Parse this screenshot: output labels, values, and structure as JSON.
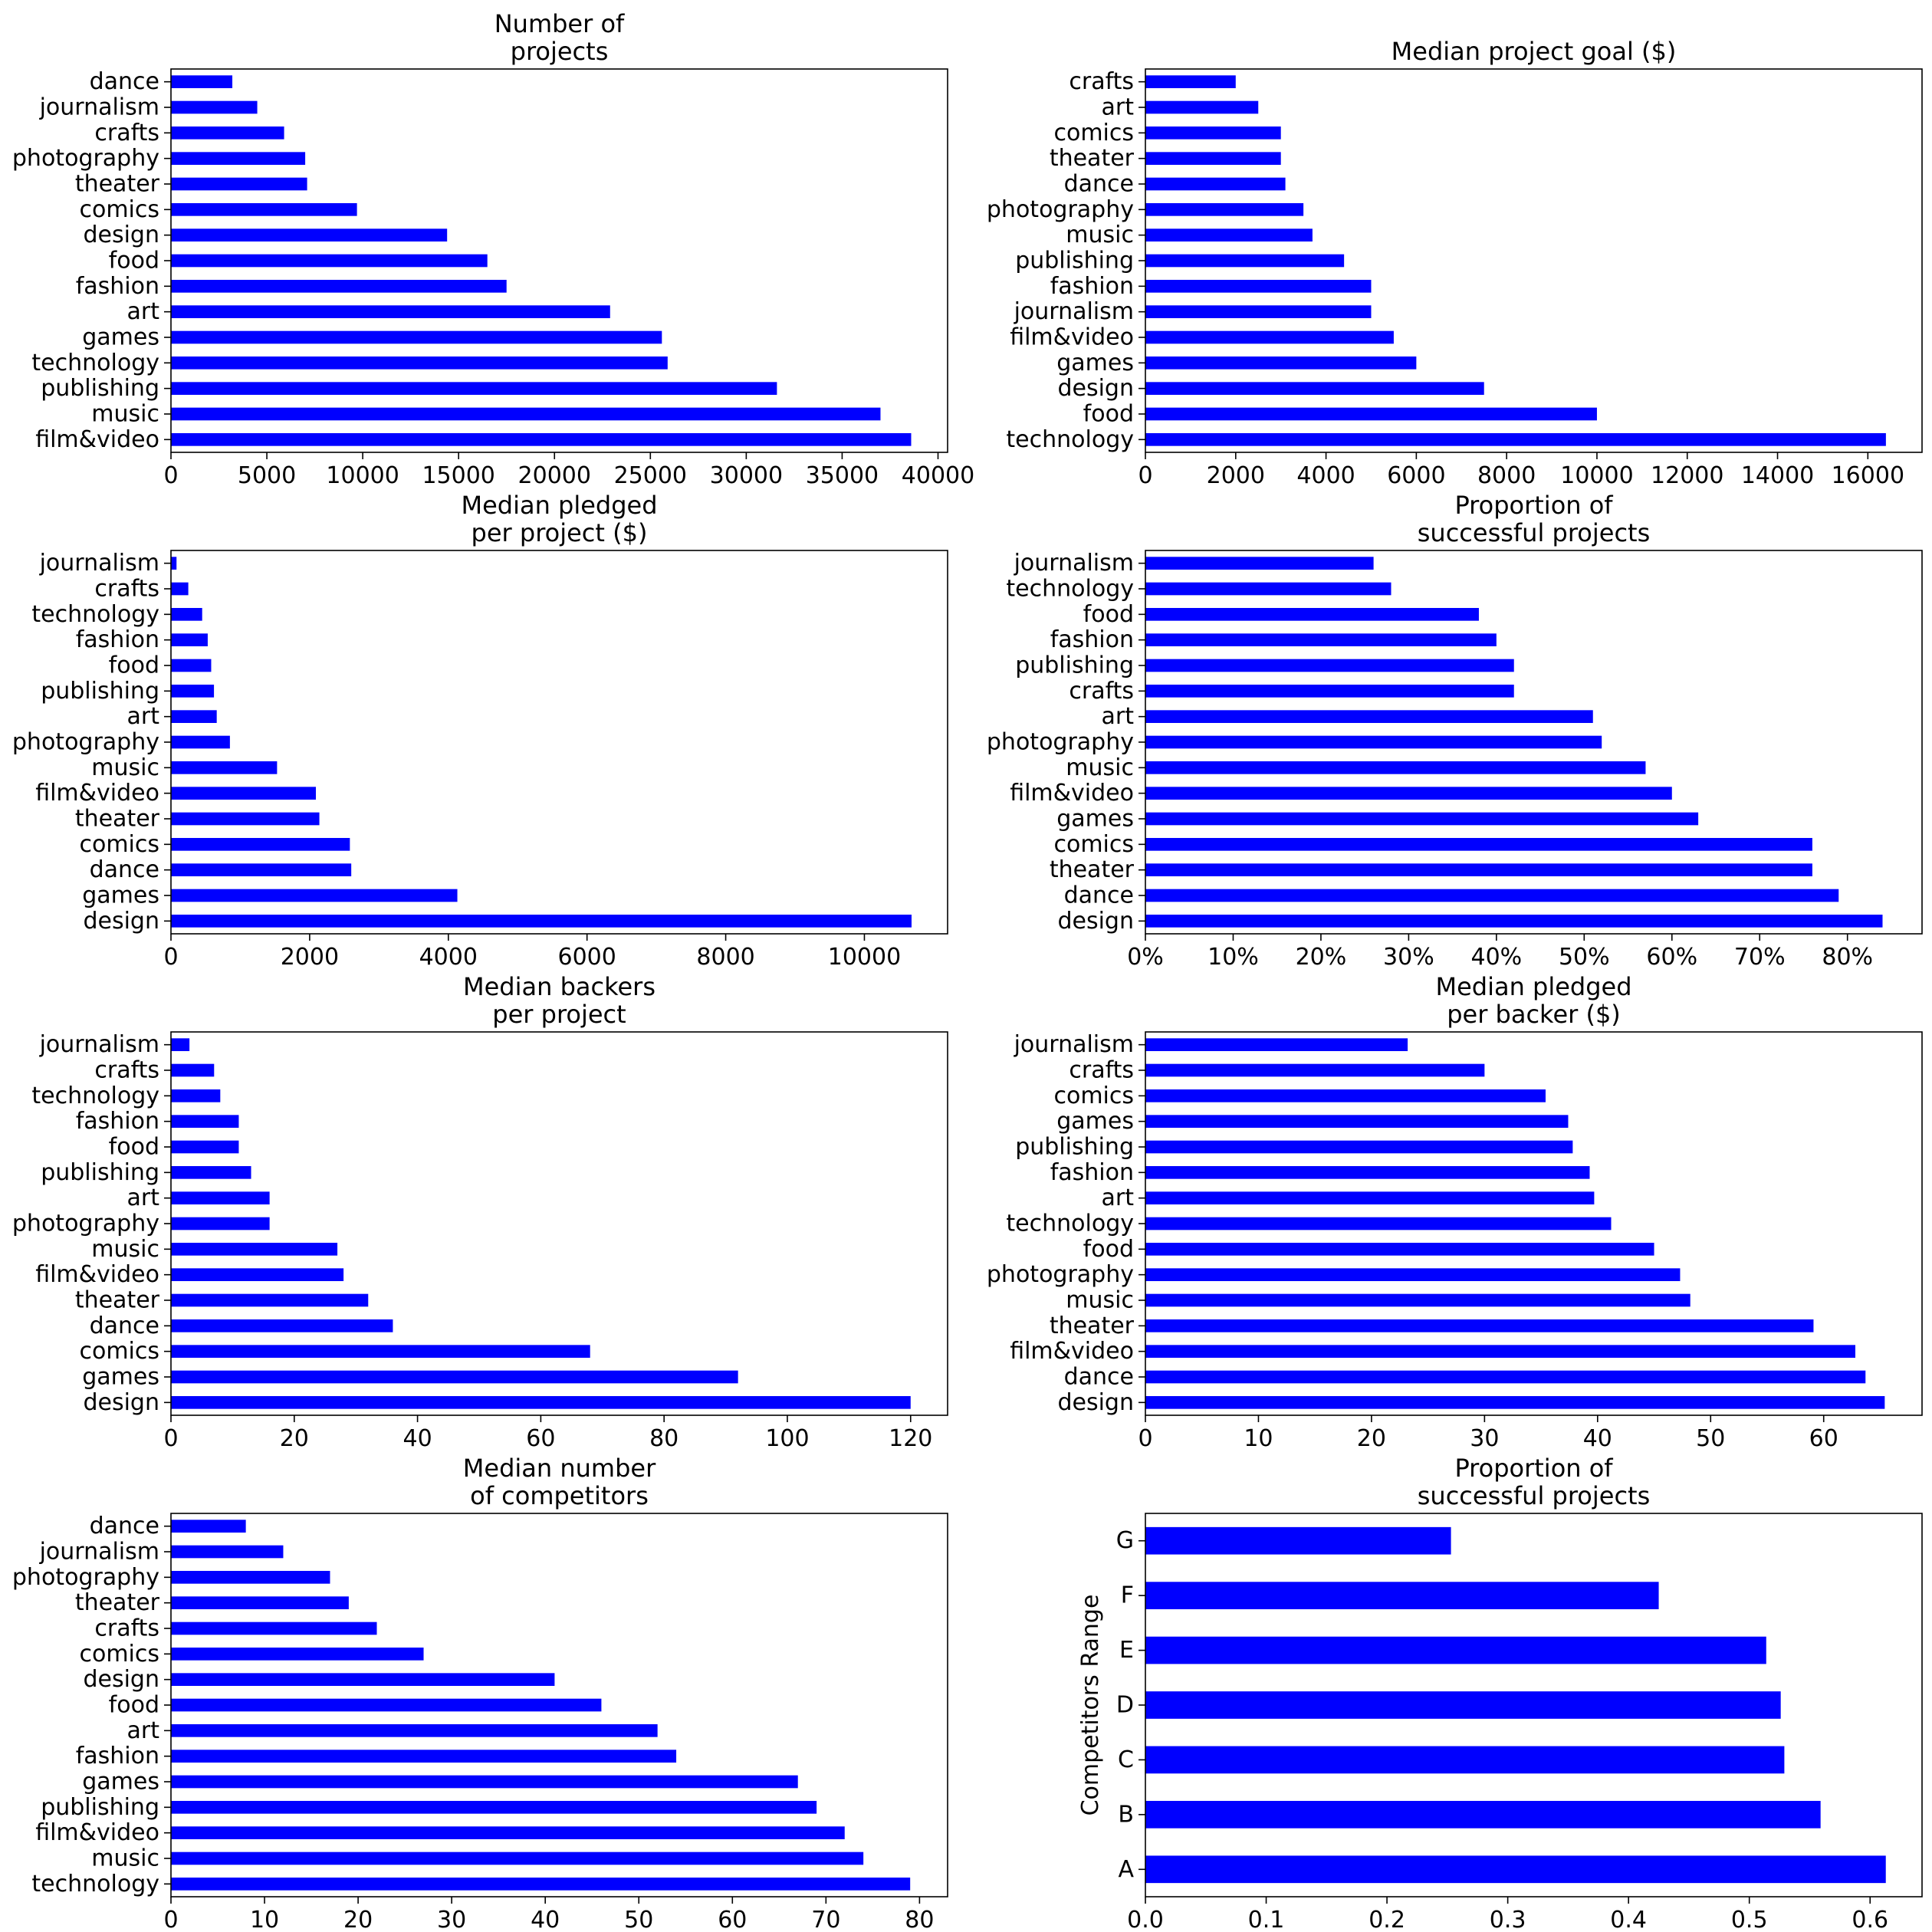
{
  "colors": {
    "bar": "#0000ff",
    "axis": "#000000",
    "background": "#ffffff"
  },
  "chart_data": [
    {
      "type": "bar",
      "orientation": "horizontal",
      "title": "Number of\nprojects",
      "xlabel": "",
      "ylabel": "",
      "categories": [
        "dance",
        "journalism",
        "crafts",
        "photography",
        "theater",
        "comics",
        "design",
        "food",
        "fashion",
        "art",
        "games",
        "technology",
        "publishing",
        "music",
        "film&video"
      ],
      "values": [
        3200,
        4500,
        5900,
        7000,
        7100,
        9700,
        14400,
        16500,
        17500,
        22900,
        25600,
        25900,
        31600,
        37000,
        38600
      ],
      "xlim": [
        0,
        40500
      ],
      "xticks": [
        0,
        5000,
        10000,
        15000,
        20000,
        25000,
        30000,
        35000,
        40000
      ],
      "xtick_labels": [
        "0",
        "5000",
        "10000",
        "15000",
        "20000",
        "25000",
        "30000",
        "35000",
        "40000"
      ],
      "grid": false
    },
    {
      "type": "bar",
      "orientation": "horizontal",
      "title": "Median project goal ($)",
      "xlabel": "",
      "ylabel": "",
      "categories": [
        "crafts",
        "art",
        "comics",
        "theater",
        "dance",
        "photography",
        "music",
        "publishing",
        "fashion",
        "journalism",
        "film&video",
        "games",
        "design",
        "food",
        "technology"
      ],
      "values": [
        2000,
        2500,
        3000,
        3000,
        3100,
        3500,
        3700,
        4400,
        5000,
        5000,
        5500,
        6000,
        7500,
        10000,
        16400
      ],
      "xlim": [
        0,
        17200
      ],
      "xticks": [
        0,
        2000,
        4000,
        6000,
        8000,
        10000,
        12000,
        14000,
        16000
      ],
      "xtick_labels": [
        "0",
        "2000",
        "4000",
        "6000",
        "8000",
        "10000",
        "12000",
        "14000",
        "16000"
      ],
      "grid": false
    },
    {
      "type": "bar",
      "orientation": "horizontal",
      "title": "Median pledged\nper project ($)",
      "xlabel": "",
      "ylabel": "",
      "categories": [
        "journalism",
        "crafts",
        "technology",
        "fashion",
        "food",
        "publishing",
        "art",
        "photography",
        "music",
        "film&video",
        "theater",
        "comics",
        "dance",
        "games",
        "design"
      ],
      "values": [
        80,
        250,
        450,
        530,
        580,
        620,
        660,
        850,
        1530,
        2090,
        2140,
        2580,
        2600,
        4130,
        10680
      ],
      "xlim": [
        0,
        11200
      ],
      "xticks": [
        0,
        2000,
        4000,
        6000,
        8000,
        10000
      ],
      "xtick_labels": [
        "0",
        "2000",
        "4000",
        "6000",
        "8000",
        "10000"
      ],
      "grid": false
    },
    {
      "type": "bar",
      "orientation": "horizontal",
      "title": "Proportion of\nsuccessful projects",
      "xlabel": "",
      "ylabel": "",
      "categories": [
        "journalism",
        "technology",
        "food",
        "fashion",
        "publishing",
        "crafts",
        "art",
        "photography",
        "music",
        "film&video",
        "games",
        "comics",
        "theater",
        "dance",
        "design"
      ],
      "values": [
        0.26,
        0.28,
        0.38,
        0.4,
        0.42,
        0.42,
        0.51,
        0.52,
        0.57,
        0.6,
        0.63,
        0.76,
        0.76,
        0.79,
        0.84
      ],
      "xlim": [
        0,
        0.885
      ],
      "xticks": [
        0,
        0.1,
        0.2,
        0.3,
        0.4,
        0.5,
        0.6,
        0.7,
        0.8
      ],
      "xtick_labels": [
        "0%",
        "10%",
        "20%",
        "30%",
        "40%",
        "50%",
        "60%",
        "70%",
        "80%"
      ],
      "grid": false
    },
    {
      "type": "bar",
      "orientation": "horizontal",
      "title": "Median backers\nper project",
      "xlabel": "",
      "ylabel": "",
      "categories": [
        "journalism",
        "crafts",
        "technology",
        "fashion",
        "food",
        "publishing",
        "art",
        "photography",
        "music",
        "film&video",
        "theater",
        "dance",
        "comics",
        "games",
        "design"
      ],
      "values": [
        3,
        7,
        8,
        11,
        11,
        13,
        16,
        16,
        27,
        28,
        32,
        36,
        68,
        92,
        120
      ],
      "xlim": [
        0,
        126
      ],
      "xticks": [
        0,
        20,
        40,
        60,
        80,
        100,
        120
      ],
      "xtick_labels": [
        "0",
        "20",
        "40",
        "60",
        "80",
        "100",
        "120"
      ],
      "grid": false
    },
    {
      "type": "bar",
      "orientation": "horizontal",
      "title": "Median pledged\nper backer ($)",
      "xlabel": "",
      "ylabel": "",
      "categories": [
        "journalism",
        "crafts",
        "comics",
        "games",
        "publishing",
        "fashion",
        "art",
        "technology",
        "food",
        "photography",
        "music",
        "theater",
        "film&video",
        "dance",
        "design"
      ],
      "values": [
        23.2,
        30.0,
        35.4,
        37.4,
        37.8,
        39.3,
        39.7,
        41.2,
        45.0,
        47.3,
        48.2,
        59.1,
        62.8,
        63.7,
        65.4
      ],
      "xlim": [
        0,
        68.7
      ],
      "xticks": [
        0,
        10,
        20,
        30,
        40,
        50,
        60
      ],
      "xtick_labels": [
        "0",
        "10",
        "20",
        "30",
        "40",
        "50",
        "60"
      ],
      "grid": false
    },
    {
      "type": "bar",
      "orientation": "horizontal",
      "title": "Median number\nof competitors",
      "xlabel": "",
      "ylabel": "",
      "categories": [
        "dance",
        "journalism",
        "photography",
        "theater",
        "crafts",
        "comics",
        "design",
        "food",
        "art",
        "fashion",
        "games",
        "publishing",
        "film&video",
        "music",
        "technology"
      ],
      "values": [
        8,
        12,
        17,
        19,
        22,
        27,
        41,
        46,
        52,
        54,
        67,
        69,
        72,
        74,
        79
      ],
      "xlim": [
        0,
        83
      ],
      "xticks": [
        0,
        10,
        20,
        30,
        40,
        50,
        60,
        70,
        80
      ],
      "xtick_labels": [
        "0",
        "10",
        "20",
        "30",
        "40",
        "50",
        "60",
        "70",
        "80"
      ],
      "grid": false
    },
    {
      "type": "bar",
      "orientation": "horizontal",
      "title": "Proportion of\nsuccessful projects",
      "xlabel": "",
      "ylabel": "Competitors Range",
      "categories": [
        "G",
        "F",
        "E",
        "D",
        "C",
        "B",
        "A"
      ],
      "values": [
        0.253,
        0.425,
        0.514,
        0.526,
        0.529,
        0.559,
        0.613
      ],
      "xlim": [
        0,
        0.643
      ],
      "xticks": [
        0,
        0.1,
        0.2,
        0.3,
        0.4,
        0.5,
        0.6
      ],
      "xtick_labels": [
        "0.0",
        "0.1",
        "0.2",
        "0.3",
        "0.4",
        "0.5",
        "0.6"
      ],
      "grid": false
    }
  ]
}
